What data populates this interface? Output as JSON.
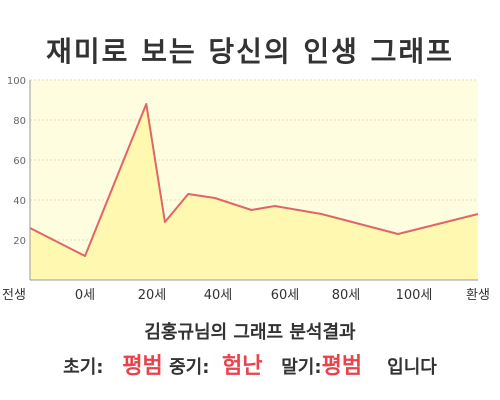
{
  "title": "재미로 보는 당신의 인생 그래프",
  "colors": {
    "plot_bg": "#fffde0",
    "line": "#e06666",
    "fill": "#fff8b0",
    "highlight": "#e8434b"
  },
  "chart_data": {
    "type": "area",
    "x_tick_labels": [
      "전생",
      "0세",
      "20세",
      "40세",
      "60세",
      "80세",
      "100세",
      "환생"
    ],
    "y_ticks": [
      20,
      40,
      60,
      80,
      100
    ],
    "ylim": [
      0,
      100
    ],
    "grid": true,
    "values": [
      26,
      12,
      88,
      29,
      43,
      41,
      35,
      37,
      33,
      23,
      33
    ],
    "x_positions": [
      -0.25,
      0,
      0.92,
      1.2,
      1.55,
      1.95,
      2.5,
      2.85,
      3.55,
      4.7,
      5.3
    ]
  },
  "summary": "김홍규님의 그래프 분석결과",
  "verdict": {
    "early_label": "초기:",
    "early_value": "평범",
    "mid_label": "중기:",
    "mid_value": "험난",
    "late_label": "말기:",
    "late_value": "평범",
    "ending": "입니다"
  }
}
